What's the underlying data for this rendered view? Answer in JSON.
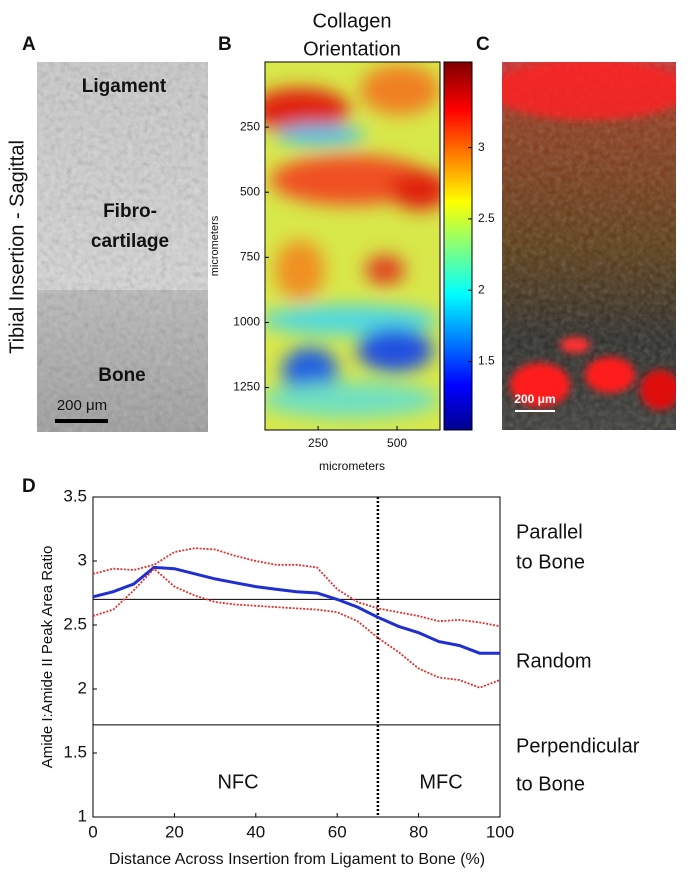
{
  "panel_a": {
    "letter": "A",
    "side_label": "Tibial Insertion - Sagittal",
    "labels": [
      [
        "Ligament"
      ],
      [
        "Fibro-",
        "cartilage"
      ],
      [
        "Bone"
      ]
    ],
    "scale_bar": "200 μm"
  },
  "panel_c": {
    "letter": "C",
    "scale_bar": "200 μm"
  },
  "chart_data": [
    {
      "type": "heatmap",
      "letter": "B",
      "title_lines": [
        "Collagen",
        "Orientation"
      ],
      "xlabel": "micrometers",
      "ylabel": "micrometers",
      "xlim": [
        82,
        636
      ],
      "ylim": [
        0,
        1413
      ],
      "xticks": [
        250,
        500
      ],
      "yticks": [
        250,
        500,
        750,
        1000,
        1250
      ],
      "clim": [
        1.02,
        3.6
      ],
      "cticks": [
        1.5,
        2,
        2.5,
        3
      ]
    },
    {
      "type": "line",
      "letter": "D",
      "xlabel": "Distance Across Insertion from Ligament to Bone (%)",
      "ylabel": "Amide I:Amide II Peak Area Ratio",
      "xlim": [
        0,
        100
      ],
      "ylim": [
        1,
        3.5
      ],
      "xticks": [
        0,
        20,
        40,
        60,
        80,
        100
      ],
      "yticks": [
        1,
        1.5,
        2,
        2.5,
        3,
        3.5
      ],
      "x": [
        0,
        5,
        10,
        15,
        20,
        25,
        30,
        35,
        40,
        45,
        50,
        55,
        60,
        65,
        70,
        75,
        80,
        85,
        90,
        95,
        100
      ],
      "series": [
        {
          "color": "#1f2fd0",
          "style": "solid",
          "values": [
            2.72,
            2.76,
            2.82,
            2.95,
            2.94,
            2.9,
            2.86,
            2.83,
            2.8,
            2.78,
            2.76,
            2.75,
            2.7,
            2.64,
            2.56,
            2.49,
            2.44,
            2.37,
            2.34,
            2.28,
            2.28
          ]
        },
        {
          "color": "#e03030",
          "style": "dotted",
          "values": [
            2.9,
            2.94,
            2.93,
            2.97,
            3.07,
            3.1,
            3.09,
            3.04,
            3.0,
            2.97,
            2.97,
            2.95,
            2.78,
            2.68,
            2.63,
            2.6,
            2.57,
            2.53,
            2.54,
            2.52,
            2.49
          ]
        },
        {
          "color": "#e03030",
          "style": "dotted",
          "values": [
            2.57,
            2.62,
            2.77,
            2.94,
            2.8,
            2.73,
            2.68,
            2.66,
            2.65,
            2.64,
            2.63,
            2.62,
            2.6,
            2.53,
            2.4,
            2.29,
            2.16,
            2.09,
            2.07,
            2.01,
            2.07
          ]
        }
      ],
      "hlines": [
        2.7,
        1.72
      ],
      "vline": 70,
      "right_labels": [
        [
          "Parallel",
          "to Bone"
        ],
        [
          "Random"
        ],
        [
          "Perpendicular",
          "to Bone"
        ]
      ],
      "region_labels": [
        "NFC",
        "MFC"
      ]
    }
  ]
}
